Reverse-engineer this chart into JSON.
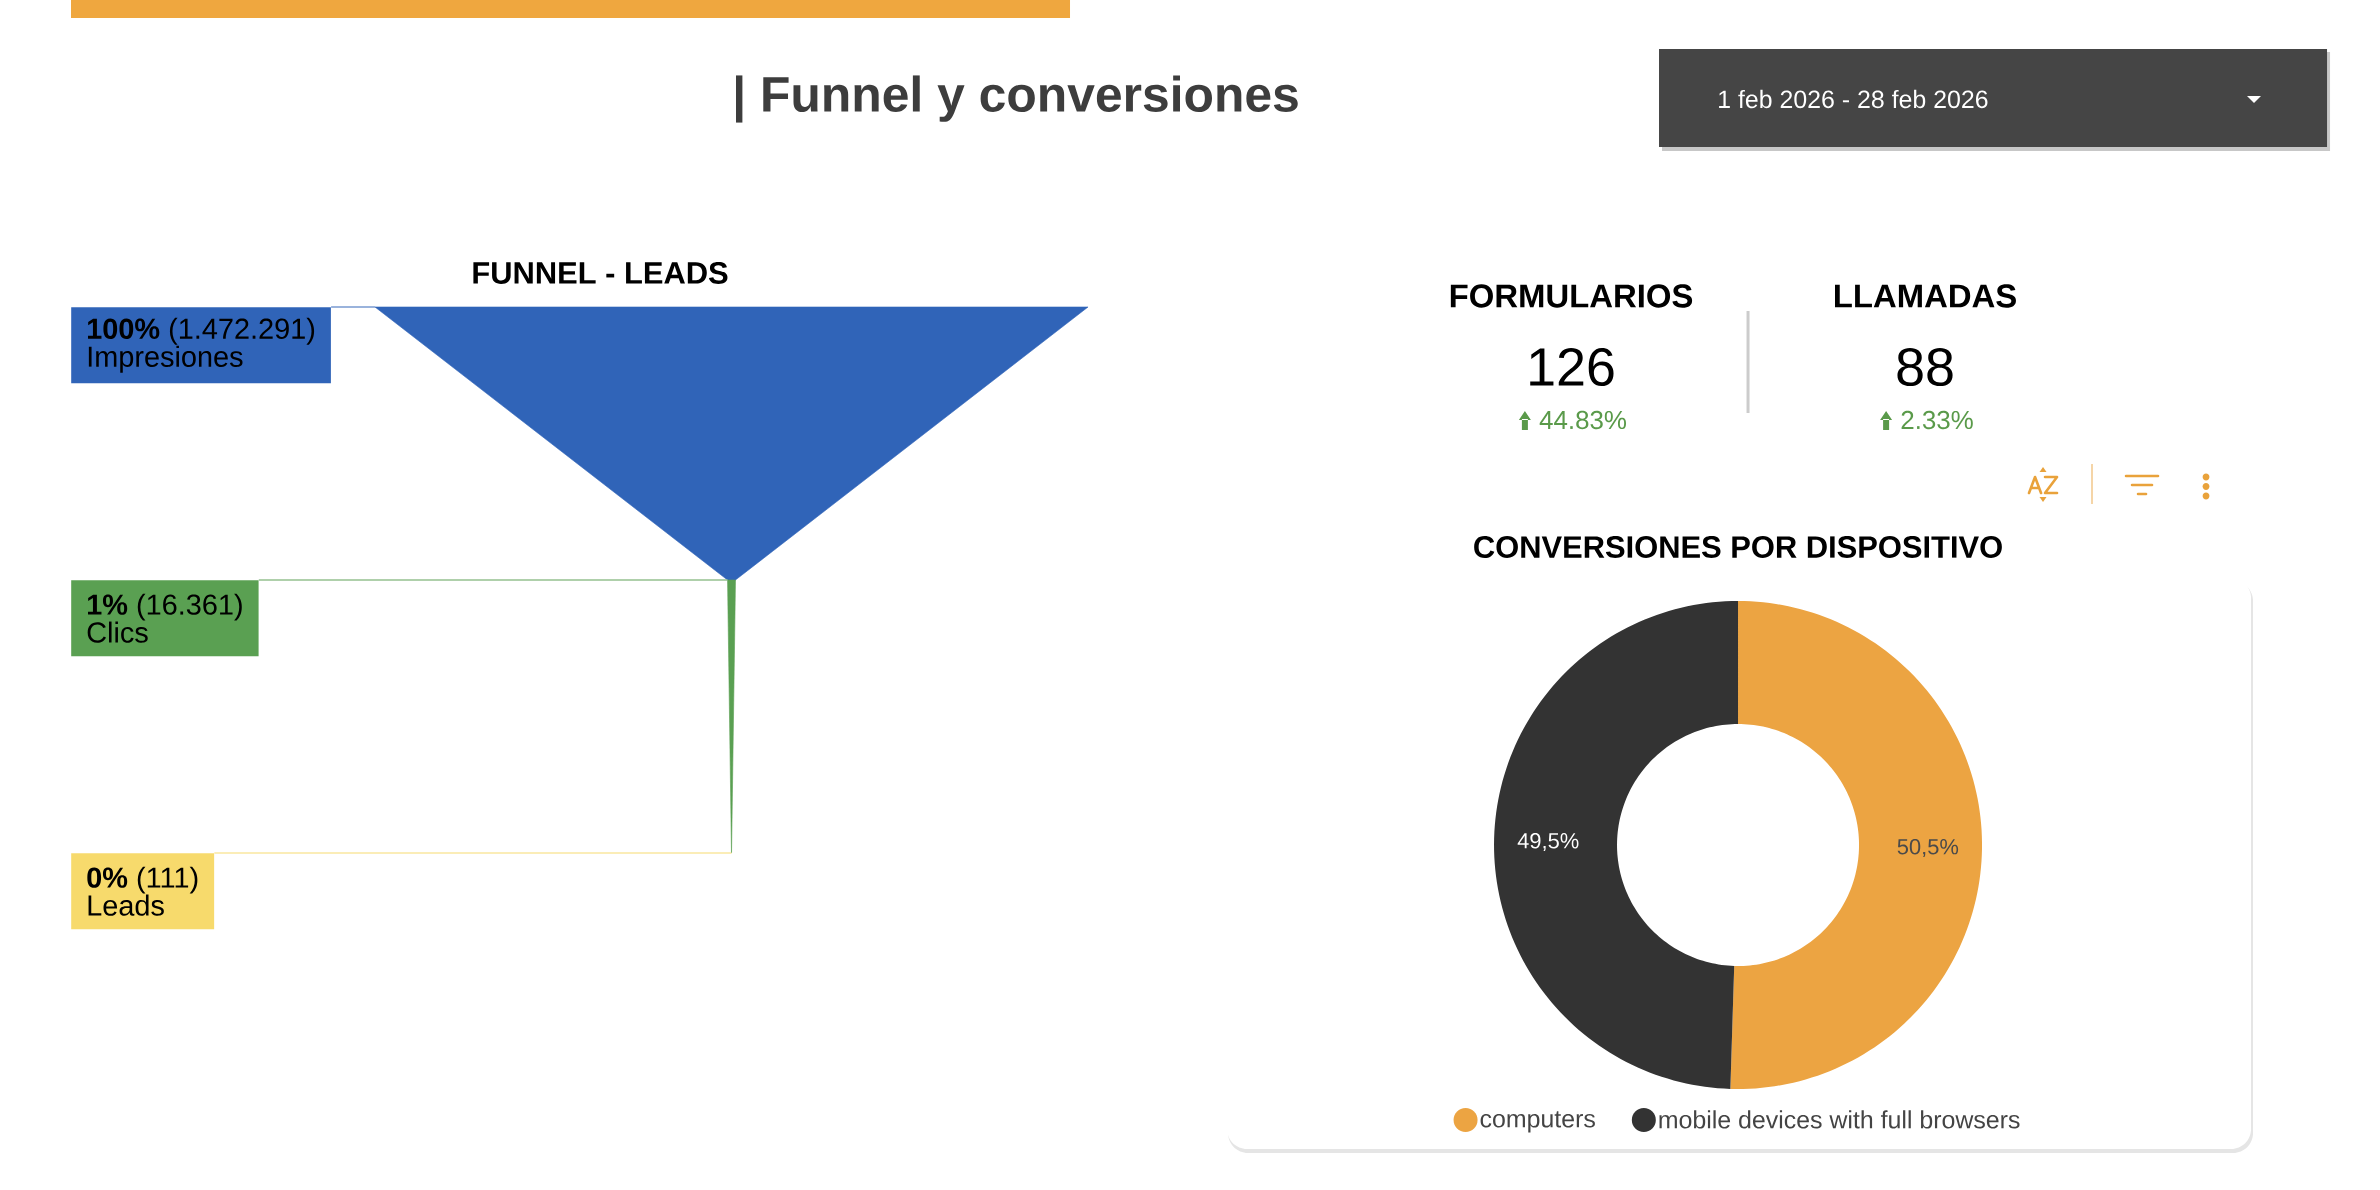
{
  "chart_data": [
    {
      "type": "other",
      "title": "| Funnel y conversiones",
      "annotations": [
        "1 feb 2026 - 28 feb 2026"
      ]
    },
    {
      "type": "other",
      "title": "FUNNEL - LEADS",
      "categories": [
        "Impresiones",
        "Clics",
        "Leads"
      ],
      "values": [
        1472291,
        16361,
        111
      ],
      "value_labels": [
        "**100%** (1.472.291)",
        "**1%** (16.361)",
        "**0%** (111)"
      ],
      "colors": [
        "#3064b8",
        "#5aa052",
        "#f7da6c"
      ]
    },
    {
      "type": "other",
      "categories": [
        "FORMULARIOS",
        "LLAMADAS"
      ],
      "values": [
        126,
        88
      ],
      "data_labels": true,
      "annotations": [
        "44.83%",
        "2.33%"
      ]
    },
    {
      "type": "donut",
      "title": "CONVERSIONES POR DISPOSITIVO",
      "categories": [
        "computers",
        "mobile devices with full browsers"
      ],
      "values": [
        50.5,
        49.5
      ],
      "colors": [
        "#eca442",
        "#333333"
      ],
      "value_labels": [
        "50,5%",
        "49,5%"
      ],
      "legend": "bottom"
    }
  ]
}
